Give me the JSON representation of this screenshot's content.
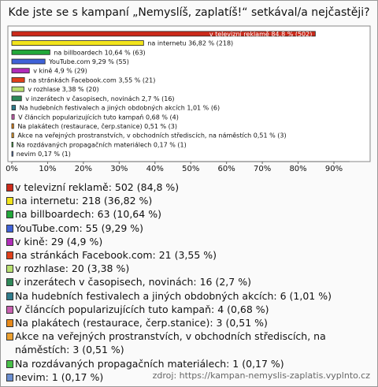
{
  "chart_data": {
    "type": "hbar",
    "title": "Kde jste se s kampaní „Nemyslíš, zaplatíš!“ setkával/a nejčastěji?",
    "categories": [
      "v televizní reklamě",
      "na internetu",
      "na billboardech",
      "YouTube.com",
      "v kině",
      "na stránkách Facebook.com",
      "v rozhlase",
      "v inzerátech v časopisech, novinách",
      "Na hudebních festivalech a jiných obdobných akcích",
      "V článcích popularizujících tuto kampaň",
      "Na plakátech (restaurace, čerp.stanice)",
      "Akce na veřejných prostranstvích, v obchodních střediscích, na náměstích",
      "Na rozdávaných propagačních materiálech",
      "nevim"
    ],
    "values": [
      84.8,
      36.82,
      10.64,
      9.29,
      4.9,
      3.55,
      3.38,
      2.7,
      1.01,
      0.68,
      0.51,
      0.51,
      0.17,
      0.17
    ],
    "value_labels": [
      "84,8 % (502)",
      "36,82 % (218)",
      "10,64 % (63)",
      "9,29 % (55)",
      "4,9 % (29)",
      "3,55 % (21)",
      "3,38 % (20)",
      "2,7 % (16)",
      "1,01 % (6)",
      "0,68 % (4)",
      "0,51 % (3)",
      "0,51 % (3)",
      "0,17 % (1)",
      "0,17 % (1)"
    ],
    "colors": [
      "#cc2a1a",
      "#f2e41c",
      "#22a83a",
      "#3f62d8",
      "#b02cb8",
      "#e0401a",
      "#b8e070",
      "#2e8a5a",
      "#2f7c8c",
      "#c860b0",
      "#e88a1a",
      "#eca030",
      "#48c048",
      "#6a8ed0"
    ],
    "legend": [
      "v televizní reklamě: 502 (84,8 %)",
      "na internetu: 218 (36,82 %)",
      "na billboardech: 63 (10,64 %)",
      "YouTube.com: 55 (9,29 %)",
      "v kině: 29 (4,9 %)",
      "na stránkách Facebook.com: 21 (3,55 %)",
      "v rozhlase: 20 (3,38 %)",
      "v inzerátech v časopisech, novinách: 16 (2,7 %)",
      "Na hudebních festivalech a jiných obdobných akcích: 6 (1,01 %)",
      "V článcích popularizujících tuto kampaň: 4 (0,68 %)",
      "Na plakátech (restaurace, čerp.stanice): 3 (0,51 %)",
      "Akce na veřejných prostranstvích, v obchodních střediscích, na náměstích: 3 (0,51 %)",
      "Na rozdávaných propagačních materiálech: 1 (0,17 %)",
      "nevim: 1 (0,17 %)"
    ],
    "xlim": [
      0,
      90
    ],
    "xticks": [
      {
        "value": 0,
        "label": "0%"
      },
      {
        "value": 10,
        "label": "10%"
      },
      {
        "value": 20,
        "label": "20%"
      },
      {
        "value": 30,
        "label": "30%"
      },
      {
        "value": 40,
        "label": "40%"
      },
      {
        "value": 50,
        "label": "50%"
      },
      {
        "value": 60,
        "label": "60%"
      },
      {
        "value": 70,
        "label": "70%"
      },
      {
        "value": 80,
        "label": "80%"
      },
      {
        "value": 90,
        "label": "90%"
      }
    ],
    "source": "zdroj: https://kampan-nemyslis-zaplatis.vyplnto.cz"
  }
}
